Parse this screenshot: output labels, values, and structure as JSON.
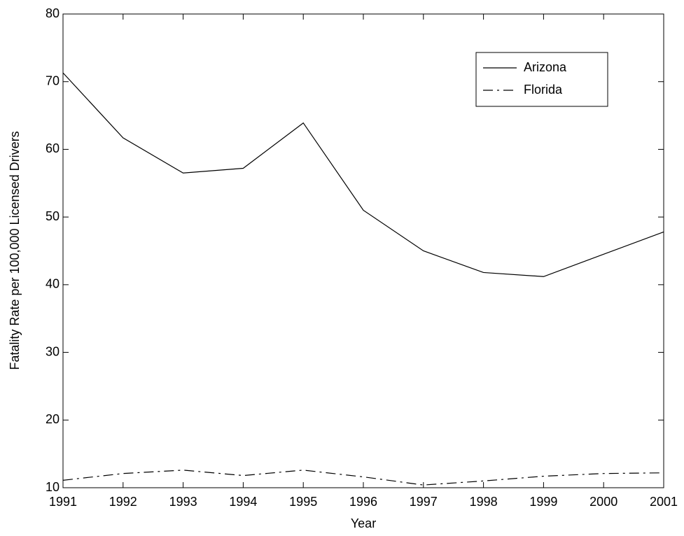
{
  "chart_data": {
    "type": "line",
    "x_label": "Year",
    "y_label": "Fatality Rate per 100,000 Licensed Drivers",
    "x": [
      1991,
      1992,
      1993,
      1994,
      1995,
      1996,
      1997,
      1998,
      1999,
      2000,
      2001
    ],
    "series": [
      {
        "name": "Arizona",
        "color": "#000000",
        "linestyle": "solid",
        "values": [
          71.3,
          61.7,
          56.5,
          57.2,
          63.9,
          51.0,
          45.0,
          41.8,
          41.2,
          44.5,
          47.8
        ]
      },
      {
        "name": "Florida",
        "color": "#000000",
        "linestyle": "dashdot",
        "values": [
          11.1,
          12.1,
          12.6,
          11.8,
          12.6,
          11.6,
          10.4,
          11.0,
          11.7,
          12.1,
          12.2
        ]
      }
    ],
    "xlim": [
      1991,
      2001
    ],
    "xticks": [
      1991,
      1992,
      1993,
      1994,
      1995,
      1996,
      1997,
      1998,
      1999,
      2000,
      2001
    ],
    "ylim": [
      10,
      80
    ],
    "yticks": [
      10,
      20,
      30,
      40,
      50,
      60,
      70,
      80
    ],
    "grid": false,
    "legend": "upper right"
  }
}
